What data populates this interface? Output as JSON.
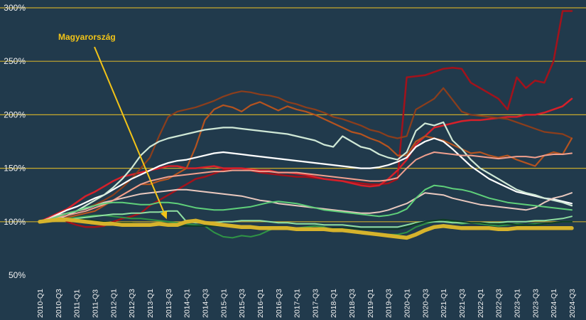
{
  "chart_data": {
    "type": "line",
    "title": "",
    "xlabel": "",
    "ylabel": "",
    "ylim": [
      50,
      300
    ],
    "y_ticks": [
      "50%",
      "100%",
      "150%",
      "200%",
      "250%",
      "300%"
    ],
    "y_tick_values": [
      50,
      100,
      150,
      200,
      250,
      300
    ],
    "grid": "horizontal",
    "background": "#213a4c",
    "gridline_color": "#c8a92c",
    "x": [
      "2010-Q1",
      "2010-Q2",
      "2010-Q3",
      "2010-Q4",
      "2011-Q1",
      "2011-Q2",
      "2011-Q3",
      "2011-Q4",
      "2012-Q1",
      "2012-Q2",
      "2012-Q3",
      "2012-Q4",
      "2013-Q1",
      "2013-Q2",
      "2013-Q3",
      "2013-Q4",
      "2014-Q1",
      "2014-Q2",
      "2014-Q3",
      "2014-Q4",
      "2015-Q1",
      "2015-Q2",
      "2015-Q3",
      "2015-Q4",
      "2016-Q1",
      "2016-Q2",
      "2016-Q3",
      "2016-Q4",
      "2017-Q1",
      "2017-Q2",
      "2017-Q3",
      "2017-Q4",
      "2018-Q1",
      "2018-Q2",
      "2018-Q3",
      "2018-Q4",
      "2019-Q1",
      "2019-Q2",
      "2019-Q3",
      "2019-Q4",
      "2020-Q1",
      "2020-Q2",
      "2020-Q3",
      "2020-Q4",
      "2021-Q1",
      "2021-Q2",
      "2021-Q3",
      "2021-Q4",
      "2022-Q1",
      "2022-Q2",
      "2022-Q3",
      "2022-Q4",
      "2023-Q1",
      "2023-Q2",
      "2023-Q3",
      "2023-Q4",
      "2024-Q1",
      "2024-Q2",
      "2024-Q3"
    ],
    "x_tick_labels": [
      "2010-Q1",
      "2010-Q3",
      "2011-Q1",
      "2011-Q3",
      "2012-Q1",
      "2012-Q3",
      "2013-Q1",
      "2013-Q3",
      "2014-Q1",
      "2014-Q3",
      "2015-Q1",
      "2015-Q3",
      "2016-Q1",
      "2016-Q3",
      "2017-Q1",
      "2017-Q3",
      "2018-Q1",
      "2018-Q3",
      "2019-Q1",
      "2019-Q3",
      "2020-Q1",
      "2020-Q3",
      "2021-Q1",
      "2021-Q3",
      "2022-Q1",
      "2022-Q3",
      "2023-Q1",
      "2023-Q3",
      "2024-Q1",
      "2024-Q3"
    ],
    "annotation": {
      "text": "Magyarország",
      "points_to": {
        "x": "2013-Q3",
        "y": 97
      }
    },
    "series": [
      {
        "color": "#a3121b",
        "width": 2.5,
        "values": [
          100,
          103,
          105,
          100,
          97,
          95,
          95,
          96,
          100,
          103,
          105,
          108,
          115,
          120,
          125,
          130,
          135,
          140,
          142,
          145,
          148,
          150,
          150,
          148,
          146,
          145,
          144,
          143,
          142,
          142,
          141,
          140,
          139,
          138,
          137,
          136,
          135,
          135,
          136,
          140,
          235,
          236,
          237,
          240,
          243,
          244,
          243,
          230,
          225,
          220,
          215,
          205,
          235,
          225,
          232,
          230,
          250,
          297,
          297
        ]
      },
      {
        "color": "#d6202a",
        "width": 2.5,
        "values": [
          100,
          104,
          108,
          112,
          118,
          124,
          128,
          133,
          138,
          142,
          144,
          146,
          148,
          150,
          152,
          152,
          150,
          150,
          151,
          152,
          150,
          150,
          150,
          149,
          148,
          148,
          146,
          146,
          145,
          144,
          142,
          140,
          139,
          138,
          136,
          134,
          133,
          134,
          140,
          148,
          158,
          172,
          180,
          188,
          190,
          192,
          194,
          195,
          195,
          196,
          197,
          198,
          198,
          200,
          200,
          202,
          205,
          208,
          215
        ]
      },
      {
        "color": "#8c3e1c",
        "width": 2.2,
        "values": [
          100,
          102,
          105,
          108,
          110,
          112,
          116,
          120,
          125,
          132,
          140,
          150,
          160,
          180,
          198,
          203,
          205,
          207,
          210,
          213,
          217,
          220,
          222,
          221,
          219,
          218,
          216,
          212,
          210,
          207,
          205,
          202,
          198,
          196,
          193,
          190,
          186,
          184,
          180,
          178,
          180,
          205,
          210,
          215,
          225,
          214,
          203,
          200,
          199,
          198,
          197,
          196,
          193,
          190,
          187,
          184,
          183,
          182,
          178
        ]
      },
      {
        "color": "#b5531f",
        "width": 2.2,
        "values": [
          100,
          101,
          102,
          104,
          106,
          108,
          110,
          115,
          120,
          125,
          130,
          135,
          135,
          138,
          140,
          145,
          150,
          170,
          195,
          205,
          209,
          207,
          203,
          209,
          212,
          208,
          204,
          208,
          205,
          203,
          200,
          196,
          192,
          188,
          184,
          182,
          178,
          175,
          170,
          162,
          162,
          175,
          180,
          178,
          176,
          172,
          168,
          164,
          165,
          162,
          160,
          162,
          158,
          155,
          152,
          162,
          165,
          163,
          178
        ]
      },
      {
        "color": "#ffffff",
        "width": 2.2,
        "values": [
          100,
          103,
          107,
          111,
          114,
          118,
          122,
          125,
          130,
          135,
          140,
          144,
          148,
          152,
          155,
          157,
          158,
          160,
          162,
          164,
          165,
          164,
          163,
          162,
          161,
          160,
          159,
          158,
          157,
          156,
          155,
          154,
          153,
          152,
          151,
          150,
          150,
          151,
          153,
          156,
          160,
          170,
          175,
          178,
          175,
          168,
          160,
          152,
          146,
          140,
          136,
          132,
          128,
          126,
          124,
          122,
          121,
          119,
          117
        ]
      },
      {
        "color": "#cfe8d6",
        "width": 2.2,
        "values": [
          100,
          101,
          103,
          106,
          110,
          115,
          120,
          125,
          132,
          140,
          150,
          162,
          170,
          175,
          178,
          180,
          182,
          184,
          186,
          187,
          188,
          188,
          187,
          186,
          185,
          184,
          183,
          182,
          180,
          178,
          176,
          172,
          170,
          180,
          175,
          170,
          168,
          163,
          160,
          158,
          165,
          185,
          192,
          190,
          193,
          176,
          168,
          158,
          150,
          145,
          140,
          135,
          130,
          127,
          125,
          122,
          120,
          118,
          115
        ]
      },
      {
        "color": "#eac9bf",
        "width": 2.0,
        "values": [
          100,
          103,
          106,
          108,
          110,
          112,
          115,
          118,
          120,
          122,
          124,
          126,
          127,
          128,
          129,
          130,
          130,
          129,
          128,
          127,
          126,
          125,
          124,
          122,
          120,
          119,
          117,
          116,
          115,
          114,
          113,
          112,
          111,
          110,
          109,
          108,
          108,
          109,
          111,
          114,
          117,
          122,
          127,
          126,
          125,
          122,
          120,
          118,
          116,
          115,
          114,
          113,
          112,
          111,
          113,
          118,
          122,
          124,
          127
        ]
      },
      {
        "color": "#f0a08e",
        "width": 2.0,
        "values": [
          100,
          102,
          104,
          106,
          108,
          110,
          113,
          116,
          120,
          125,
          130,
          135,
          138,
          140,
          142,
          143,
          144,
          145,
          146,
          147,
          147,
          148,
          148,
          148,
          147,
          147,
          146,
          146,
          146,
          145,
          144,
          143,
          142,
          141,
          140,
          139,
          138,
          138,
          139,
          141,
          150,
          158,
          162,
          165,
          164,
          163,
          162,
          162,
          161,
          160,
          159,
          160,
          161,
          161,
          160,
          162,
          163,
          163,
          164
        ]
      },
      {
        "color": "#5fd07a",
        "width": 2.0,
        "values": [
          100,
          102,
          105,
          108,
          110,
          113,
          115,
          117,
          118,
          118,
          117,
          116,
          116,
          118,
          118,
          117,
          115,
          113,
          112,
          111,
          111,
          112,
          113,
          114,
          116,
          118,
          119,
          118,
          117,
          115,
          113,
          111,
          110,
          109,
          108,
          107,
          106,
          105,
          106,
          108,
          112,
          122,
          130,
          134,
          133,
          131,
          130,
          128,
          125,
          122,
          120,
          118,
          117,
          116,
          115,
          114,
          113,
          112,
          111
        ]
      },
      {
        "color": "#2f9446",
        "width": 2.0,
        "values": [
          100,
          101,
          102,
          103,
          104,
          105,
          106,
          106,
          105,
          104,
          103,
          103,
          102,
          101,
          100,
          99,
          98,
          97,
          96,
          90,
          86,
          85,
          87,
          86,
          88,
          92,
          95,
          93,
          94,
          95,
          96,
          95,
          93,
          94,
          92,
          91,
          90,
          89,
          88,
          88,
          90,
          95,
          98,
          100,
          102,
          100,
          98,
          99,
          98,
          97,
          96,
          97,
          98,
          97,
          98,
          98,
          99,
          100,
          100
        ]
      },
      {
        "color": "#8fe0a1",
        "width": 2.0,
        "values": [
          100,
          100,
          101,
          102,
          103,
          104,
          105,
          106,
          107,
          107,
          108,
          108,
          109,
          109,
          110,
          110,
          100,
          99,
          99,
          99,
          100,
          100,
          101,
          101,
          101,
          100,
          99,
          99,
          98,
          98,
          98,
          97,
          97,
          97,
          96,
          95,
          95,
          95,
          95,
          95,
          97,
          99,
          100,
          100,
          100,
          99,
          99,
          99,
          99,
          99,
          99,
          100,
          100,
          100,
          101,
          101,
          102,
          103,
          105
        ]
      },
      {
        "color": "#0d3b24",
        "width": 2.0,
        "values": [
          100,
          100,
          101,
          101,
          102,
          102,
          101,
          100,
          99,
          99,
          99,
          98,
          98,
          97,
          97,
          96,
          96,
          96,
          96,
          96,
          96,
          95,
          95,
          95,
          95,
          95,
          95,
          95,
          94,
          94,
          94,
          94,
          94,
          94,
          94,
          93,
          93,
          93,
          93,
          93,
          95,
          98,
          100,
          101,
          102,
          101,
          100,
          99,
          99,
          98,
          98,
          98,
          97,
          97,
          97,
          98,
          99,
          100,
          100
        ]
      },
      {
        "color": "#d6b32c",
        "width": 5.5,
        "values": [
          100,
          101,
          102,
          102,
          101,
          100,
          99,
          98,
          98,
          97,
          97,
          97,
          97,
          98,
          97,
          97,
          100,
          101,
          99,
          98,
          97,
          96,
          95,
          95,
          94,
          94,
          94,
          94,
          93,
          93,
          93,
          93,
          92,
          92,
          91,
          90,
          89,
          88,
          87,
          86,
          85,
          88,
          92,
          95,
          96,
          95,
          94,
          94,
          94,
          94,
          93,
          93,
          94,
          94,
          94,
          94,
          94,
          94,
          94
        ]
      }
    ]
  }
}
